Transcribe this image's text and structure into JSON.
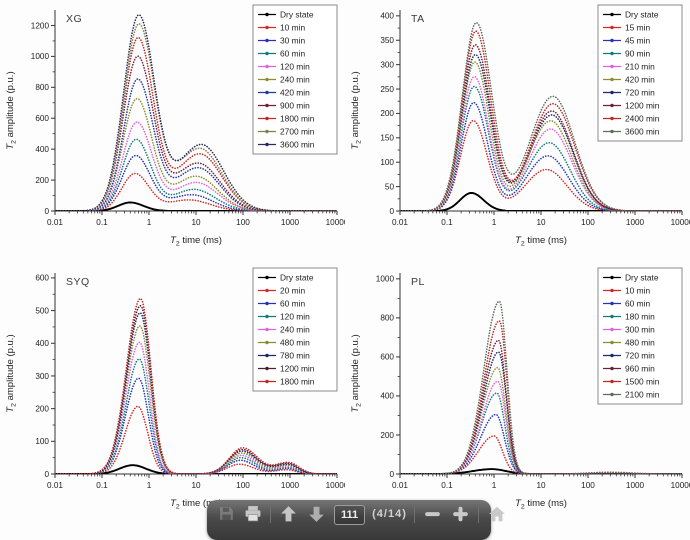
{
  "toolbar": {
    "page_number": "111",
    "page_indicator": "(4/14)",
    "icons": [
      "save-icon",
      "print-icon",
      "arrow-up-icon",
      "arrow-down-icon",
      "minus-icon",
      "plus-icon",
      "home-icon"
    ],
    "bar_color": "#4a4a4a",
    "icon_color": "#c6c6c6"
  },
  "chart_data": [
    {
      "type": "line",
      "title": "XG",
      "xlabel": {
        "pre": "T",
        "sub": "2",
        "rest": " time (ms)"
      },
      "ylabel": {
        "pre": "T",
        "sub": "2",
        "rest": " amplitude (p.u.)"
      },
      "xscale": "log",
      "xlim": [
        0.01,
        10000
      ],
      "xticks": [
        "0.01",
        "0.1",
        "1",
        "10",
        "100",
        "1000",
        "10000"
      ],
      "yticks": [
        0,
        200,
        400,
        600,
        800,
        1000,
        1200
      ],
      "ytick_step": 200,
      "yframe": 1300,
      "legend_position": "top-right",
      "grid": false,
      "peaks_format": "[center_ms, height_pu, sigma_left_decades, sigma_right_decades]",
      "series": [
        {
          "name": "Dry state",
          "color": "#000000",
          "style": "solid",
          "peaks": [
            [
              0.4,
              55,
              0.26,
              0.28
            ]
          ]
        },
        {
          "name": "10 min",
          "color": "#d22828",
          "style": "dotted",
          "peaks": [
            [
              0.5,
              240,
              0.28,
              0.3
            ],
            [
              7,
              72,
              0.45,
              0.45
            ]
          ]
        },
        {
          "name": "30 min",
          "color": "#2433b8",
          "style": "dotted",
          "peaks": [
            [
              0.52,
              355,
              0.29,
              0.31
            ],
            [
              8,
              105,
              0.46,
              0.45
            ]
          ]
        },
        {
          "name": "60 min",
          "color": "#107c7c",
          "style": "dotted",
          "peaks": [
            [
              0.53,
              460,
              0.29,
              0.31
            ],
            [
              9,
              140,
              0.46,
              0.46
            ]
          ]
        },
        {
          "name": "120 min",
          "color": "#e060dd",
          "style": "dotted",
          "peaks": [
            [
              0.55,
              570,
              0.3,
              0.32
            ],
            [
              10,
              185,
              0.47,
              0.46
            ]
          ]
        },
        {
          "name": "240 min",
          "color": "#8c8c30",
          "style": "dotted",
          "peaks": [
            [
              0.55,
              720,
              0.3,
              0.32
            ],
            [
              10,
              225,
              0.48,
              0.46
            ]
          ]
        },
        {
          "name": "420 min",
          "color": "#1f3a9e",
          "style": "dotted",
          "peaks": [
            [
              0.57,
              845,
              0.3,
              0.33
            ],
            [
              11,
              280,
              0.49,
              0.46
            ]
          ]
        },
        {
          "name": "900 min",
          "color": "#6e2038",
          "style": "dotted",
          "peaks": [
            [
              0.57,
              990,
              0.31,
              0.33
            ],
            [
              11,
              310,
              0.5,
              0.47
            ]
          ]
        },
        {
          "name": "1800 min",
          "color": "#c42525",
          "style": "dotted",
          "peaks": [
            [
              0.58,
              1110,
              0.31,
              0.33
            ],
            [
              12,
              370,
              0.5,
              0.47
            ]
          ]
        },
        {
          "name": "2700 min",
          "color": "#80804e",
          "style": "dotted",
          "peaks": [
            [
              0.6,
              1195,
              0.31,
              0.34
            ],
            [
              12,
              405,
              0.51,
              0.47
            ]
          ]
        },
        {
          "name": "3600 min",
          "color": "#2a2a5c",
          "style": "dotted",
          "peaks": [
            [
              0.6,
              1255,
              0.32,
              0.34
            ],
            [
              13,
              430,
              0.51,
              0.47
            ]
          ]
        }
      ]
    },
    {
      "type": "line",
      "title": "TA",
      "xlabel": {
        "pre": "T",
        "sub": "2",
        "rest": " time (ms)"
      },
      "ylabel": {
        "pre": "T",
        "sub": "2",
        "rest": " amplitude (p.u.)"
      },
      "xscale": "log",
      "xlim": [
        0.01,
        10000
      ],
      "xticks": [
        "0.01",
        "0.1",
        "1",
        "10",
        "100",
        "1000",
        "10000"
      ],
      "yticks": [
        0,
        50,
        100,
        150,
        200,
        250,
        300,
        350,
        400
      ],
      "ytick_step": 50,
      "yframe": 412,
      "legend_position": "top-right",
      "grid": false,
      "peaks_format": "[center_ms, height_pu, sigma_left_decades, sigma_right_decades]",
      "series": [
        {
          "name": "Dry state",
          "color": "#000000",
          "style": "solid",
          "peaks": [
            [
              0.33,
              37,
              0.24,
              0.26
            ]
          ]
        },
        {
          "name": "15 min",
          "color": "#d22828",
          "style": "dotted",
          "peaks": [
            [
              0.36,
              185,
              0.27,
              0.3
            ],
            [
              13,
              85,
              0.46,
              0.44
            ]
          ]
        },
        {
          "name": "45 min",
          "color": "#2433b8",
          "style": "dotted",
          "peaks": [
            [
              0.37,
              222,
              0.27,
              0.3
            ],
            [
              14,
              113,
              0.46,
              0.44
            ]
          ]
        },
        {
          "name": "90 min",
          "color": "#107c7c",
          "style": "dotted",
          "peaks": [
            [
              0.38,
              255,
              0.28,
              0.31
            ],
            [
              15,
              140,
              0.47,
              0.44
            ]
          ]
        },
        {
          "name": "210 min",
          "color": "#e060dd",
          "style": "dotted",
          "peaks": [
            [
              0.38,
              275,
              0.28,
              0.31
            ],
            [
              16,
              168,
              0.47,
              0.45
            ]
          ]
        },
        {
          "name": "420 min",
          "color": "#8c8c30",
          "style": "dotted",
          "peaks": [
            [
              0.39,
              305,
              0.28,
              0.31
            ],
            [
              16,
              185,
              0.47,
              0.45
            ]
          ]
        },
        {
          "name": "720 min",
          "color": "#1d2a60",
          "style": "dotted",
          "peaks": [
            [
              0.4,
              320,
              0.29,
              0.32
            ],
            [
              17,
              197,
              0.48,
              0.45
            ]
          ]
        },
        {
          "name": "1200 min",
          "color": "#6e2038",
          "style": "dotted",
          "peaks": [
            [
              0.4,
              340,
              0.29,
              0.32
            ],
            [
              17,
              205,
              0.48,
              0.45
            ]
          ]
        },
        {
          "name": "2400 min",
          "color": "#c42525",
          "style": "dotted",
          "peaks": [
            [
              0.41,
              368,
              0.29,
              0.32
            ],
            [
              18,
              220,
              0.48,
              0.46
            ]
          ]
        },
        {
          "name": "3600 min",
          "color": "#5c6e5a",
          "style": "dotted",
          "peaks": [
            [
              0.42,
              385,
              0.3,
              0.33
            ],
            [
              18,
              235,
              0.49,
              0.46
            ]
          ]
        }
      ]
    },
    {
      "type": "line",
      "title": "SYQ",
      "xlabel": {
        "pre": "T",
        "sub": "2",
        "rest": " time (ms)"
      },
      "ylabel": {
        "pre": "T",
        "sub": "2",
        "rest": " amplitude (p.u.)"
      },
      "xscale": "log",
      "xlim": [
        0.01,
        10000
      ],
      "xticks": [
        "0.01",
        "0.1",
        "1",
        "10",
        "100",
        "1000",
        "10000"
      ],
      "yticks": [
        0,
        100,
        200,
        300,
        400,
        500,
        600
      ],
      "ytick_step": 100,
      "yframe": 615,
      "legend_position": "top-right",
      "grid": false,
      "peaks_format": "[center_ms, height_pu, sigma_left_decades, sigma_right_decades]",
      "series": [
        {
          "name": "Dry state",
          "color": "#000000",
          "style": "solid",
          "peaks": [
            [
              0.45,
              27,
              0.28,
              0.28
            ]
          ]
        },
        {
          "name": "20 min",
          "color": "#d22828",
          "style": "dotted",
          "peaks": [
            [
              0.58,
              207,
              0.27,
              0.21
            ],
            [
              85,
              30,
              0.27,
              0.3
            ],
            [
              850,
              13,
              0.26,
              0.2
            ]
          ]
        },
        {
          "name": "60 min",
          "color": "#2433b8",
          "style": "dotted",
          "peaks": [
            [
              0.6,
              293,
              0.28,
              0.21
            ],
            [
              88,
              42,
              0.27,
              0.3
            ],
            [
              870,
              17,
              0.26,
              0.2
            ]
          ]
        },
        {
          "name": "120 min",
          "color": "#107c7c",
          "style": "dotted",
          "peaks": [
            [
              0.62,
              352,
              0.28,
              0.21
            ],
            [
              90,
              50,
              0.27,
              0.31
            ],
            [
              880,
              20,
              0.27,
              0.2
            ]
          ]
        },
        {
          "name": "240 min",
          "color": "#e060dd",
          "style": "dotted",
          "peaks": [
            [
              0.63,
              403,
              0.29,
              0.21
            ],
            [
              92,
              57,
              0.27,
              0.31
            ],
            [
              890,
              23,
              0.27,
              0.21
            ]
          ]
        },
        {
          "name": "480 min",
          "color": "#8c8c30",
          "style": "dotted",
          "peaks": [
            [
              0.64,
              453,
              0.29,
              0.22
            ],
            [
              94,
              64,
              0.28,
              0.31
            ],
            [
              900,
              26,
              0.27,
              0.21
            ]
          ]
        },
        {
          "name": "780 min",
          "color": "#1d2a60",
          "style": "dotted",
          "peaks": [
            [
              0.65,
              493,
              0.29,
              0.22
            ],
            [
              95,
              70,
              0.28,
              0.32
            ],
            [
              910,
              29,
              0.28,
              0.21
            ]
          ]
        },
        {
          "name": "1200 min",
          "color": "#4f1f30",
          "style": "dotted",
          "peaks": [
            [
              0.66,
              515,
              0.3,
              0.22
            ],
            [
              96,
              75,
              0.28,
              0.32
            ],
            [
              920,
              32,
              0.28,
              0.22
            ]
          ]
        },
        {
          "name": "1800 min",
          "color": "#c42525",
          "style": "dotted",
          "peaks": [
            [
              0.66,
              537,
              0.3,
              0.22
            ],
            [
              98,
              80,
              0.28,
              0.32
            ],
            [
              930,
              35,
              0.28,
              0.22
            ]
          ]
        }
      ]
    },
    {
      "type": "line",
      "title": "PL",
      "xlabel": {
        "pre": "T",
        "sub": "2",
        "rest": " time (ms)"
      },
      "ylabel": {
        "pre": "T",
        "sub": "2",
        "rest": " amplitude (p.u.)"
      },
      "xscale": "log",
      "xlim": [
        0.01,
        10000
      ],
      "xticks": [
        "0.01",
        "0.1",
        "1",
        "10",
        "100",
        "1000",
        "10000"
      ],
      "yticks": [
        0,
        200,
        400,
        600,
        800,
        1000
      ],
      "ytick_step": 200,
      "yframe": 1030,
      "legend_position": "top-right",
      "grid": false,
      "peaks_format": "[center_ms, height_pu, sigma_left_decades, sigma_right_decades]",
      "series": [
        {
          "name": "Dry state",
          "color": "#000000",
          "style": "solid",
          "peaks": [
            [
              0.9,
              25,
              0.4,
              0.3
            ]
          ]
        },
        {
          "name": "10 min",
          "color": "#d22828",
          "style": "dotted",
          "peaks": [
            [
              1.0,
              195,
              0.33,
              0.18
            ]
          ]
        },
        {
          "name": "60 min",
          "color": "#2433b8",
          "style": "dotted",
          "peaks": [
            [
              1.1,
              305,
              0.33,
              0.18
            ]
          ]
        },
        {
          "name": "180 min",
          "color": "#107c7c",
          "style": "dotted",
          "peaks": [
            [
              1.15,
              415,
              0.33,
              0.17
            ]
          ]
        },
        {
          "name": "300 min",
          "color": "#e060dd",
          "style": "dotted",
          "peaks": [
            [
              1.2,
              475,
              0.33,
              0.17
            ]
          ]
        },
        {
          "name": "480 min",
          "color": "#8c8c30",
          "style": "dotted",
          "peaks": [
            [
              1.2,
              545,
              0.33,
              0.17
            ]
          ]
        },
        {
          "name": "720 min",
          "color": "#1d2a60",
          "style": "dotted",
          "peaks": [
            [
              1.25,
              625,
              0.33,
              0.17
            ]
          ]
        },
        {
          "name": "960 min",
          "color": "#6e2038",
          "style": "dotted",
          "peaks": [
            [
              1.25,
              685,
              0.33,
              0.16
            ]
          ]
        },
        {
          "name": "1500 min",
          "color": "#c42525",
          "style": "dotted",
          "peaks": [
            [
              1.3,
              785,
              0.33,
              0.16
            ],
            [
              300,
              8,
              0.45,
              0.45
            ]
          ]
        },
        {
          "name": "2100 min",
          "color": "#5c6e5a",
          "style": "dotted",
          "peaks": [
            [
              1.3,
              885,
              0.33,
              0.16
            ],
            [
              300,
              9,
              0.45,
              0.45
            ]
          ]
        }
      ]
    }
  ]
}
